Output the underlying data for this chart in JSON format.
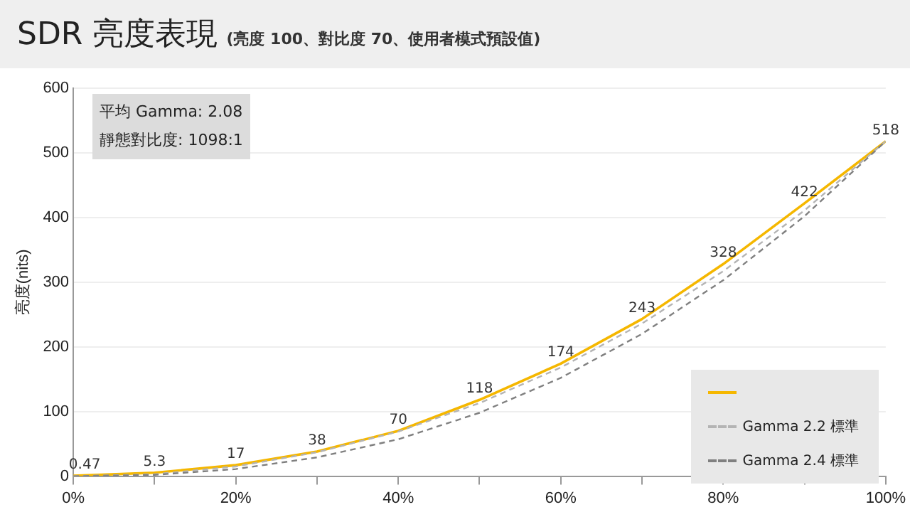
{
  "chart_data": {
    "type": "line",
    "title": "SDR 亮度表現",
    "subtitle": "(亮度 100、對比度 70、使用者模式預設值)",
    "ylabel": "亮度(nits)",
    "x": [
      0,
      10,
      20,
      30,
      40,
      50,
      60,
      70,
      80,
      90,
      100
    ],
    "series": [
      {
        "color": "#f5b700",
        "values": [
          0.47,
          5.3,
          17,
          38,
          70,
          118,
          174,
          243,
          328,
          422,
          518
        ],
        "value_labels": [
          "0.47",
          "5.3",
          "17",
          "38",
          "70",
          "118",
          "174",
          "243",
          "328",
          "422",
          "518"
        ]
      },
      {
        "name": "Gamma 2.2 標準",
        "color": "#b4b4b4",
        "line_style": "dashed",
        "values": [
          0,
          3,
          15,
          37,
          69,
          113,
          168,
          236,
          317,
          411,
          518
        ]
      },
      {
        "name": "Gamma 2.4 標準",
        "color": "#808080",
        "line_style": "dashed",
        "values": [
          0,
          2,
          11,
          29,
          57,
          98,
          152,
          220,
          303,
          402,
          518
        ]
      }
    ],
    "xlim": [
      0,
      100
    ],
    "xticks": [
      {
        "value": 0,
        "label": "0%"
      },
      {
        "value": 10,
        "label": null
      },
      {
        "value": 20,
        "label": "20%"
      },
      {
        "value": 30,
        "label": null
      },
      {
        "value": 40,
        "label": "40%"
      },
      {
        "value": 50,
        "label": null
      },
      {
        "value": 60,
        "label": "60%"
      },
      {
        "value": 70,
        "label": null
      },
      {
        "value": 80,
        "label": "80%"
      },
      {
        "value": 90,
        "label": null
      },
      {
        "value": 100,
        "label": "100%"
      }
    ],
    "ylim": [
      0,
      600
    ],
    "yticks": [
      0,
      100,
      200,
      300,
      400,
      500,
      600
    ],
    "annotations": [
      "平均 Gamma: 2.08",
      "靜態對比度: 1098:1"
    ],
    "grid": "y",
    "legend": "bottom right",
    "marker": "none"
  }
}
